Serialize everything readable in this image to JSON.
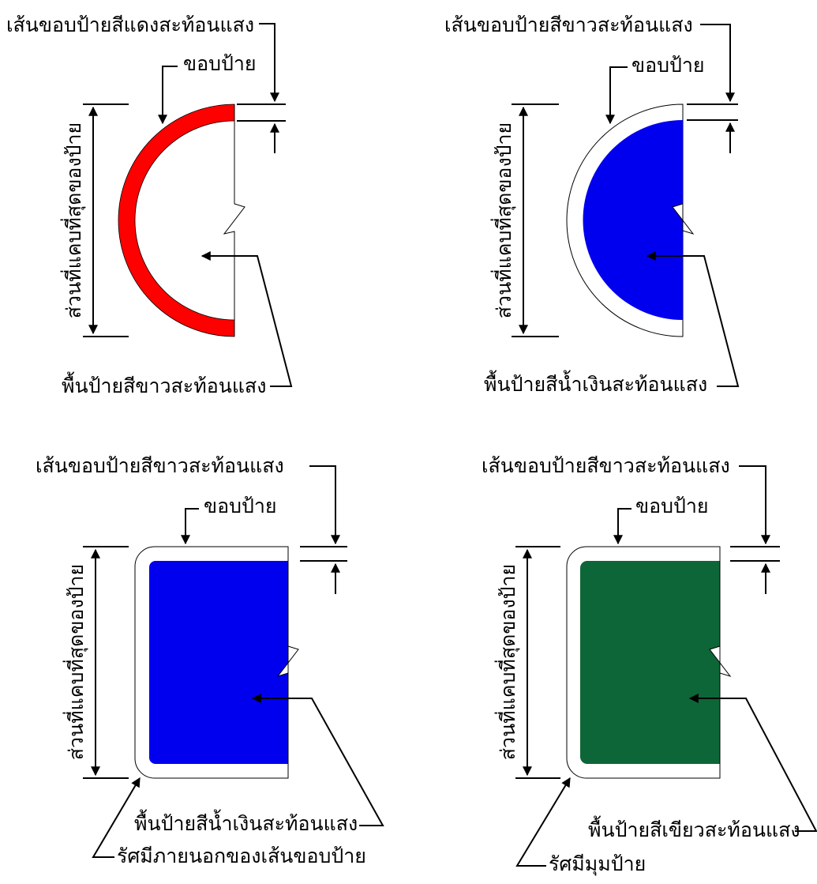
{
  "colors": {
    "red": "#ff0000",
    "blue": "#0000ee",
    "green": "#0d6637",
    "white": "#ffffff",
    "outline": "#000000"
  },
  "panels": [
    {
      "shape": "semicircle",
      "border_label": "เส้นขอบป้ายสีแดงสะท้อนแสง",
      "edge_label": "ขอบป้าย",
      "height_label": "ส่วนที่แคบที่สุดของป้าย",
      "background_label": "พื้นป้ายสีขาวสะท้อนแสง"
    },
    {
      "shape": "semicircle",
      "border_label": "เส้นขอบป้ายสีขาวสะท้อนแสง",
      "edge_label": "ขอบป้าย",
      "height_label": "ส่วนที่แคบที่สุดของป้าย",
      "background_label": "พื้นป้ายสีน้ำเงินสะท้อนแสง"
    },
    {
      "shape": "rounded-rectangle",
      "border_label": "เส้นขอบป้ายสีขาวสะท้อนแสง",
      "edge_label": "ขอบป้าย",
      "height_label": "ส่วนที่แคบที่สุดของป้าย",
      "background_label": "พื้นป้ายสีน้ำเงินสะท้อนแสง",
      "corner_label": "รัศมีภายนอกของเส้นขอบป้าย"
    },
    {
      "shape": "rounded-rectangle",
      "border_label": "เส้นขอบป้ายสีขาวสะท้อนแสง",
      "edge_label": "ขอบป้าย",
      "height_label": "ส่วนที่แคบที่สุดของป้าย",
      "background_label": "พื้นป้ายสีเขียวสะท้อนแสง",
      "corner_label": "รัศมีมุมป้าย"
    }
  ]
}
